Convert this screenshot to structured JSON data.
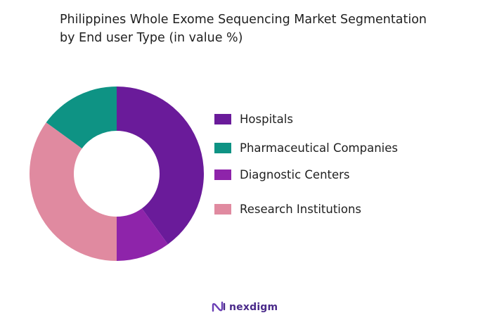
{
  "title": {
    "line1": "Philippines Whole Exome Sequencing Market Segmentation",
    "line2": "by End user Type (in value %)"
  },
  "chart_data": {
    "type": "pie",
    "variant": "donut",
    "title": "Philippines Whole Exome Sequencing Market Segmentation by End user Type (in value %)",
    "legend_position": "right",
    "series": [
      {
        "name": "Hospitals",
        "value": 40,
        "color": "#6a1b9a"
      },
      {
        "name": "Pharmaceutical Companies",
        "value": 15,
        "color": "#0e9384"
      },
      {
        "name": "Diagnostic Centers",
        "value": 10,
        "color": "#8e24aa"
      },
      {
        "name": "Research Institutions",
        "value": 35,
        "color": "#e08aa0"
      }
    ],
    "slice_order_clockwise_from_top": [
      "Hospitals",
      "Diagnostic Centers",
      "Research Institutions",
      "Pharmaceutical Companies"
    ]
  },
  "brand": {
    "name": "nexdigm",
    "color": "#4a2a8a",
    "icon": "nexdigm-logo-icon"
  }
}
